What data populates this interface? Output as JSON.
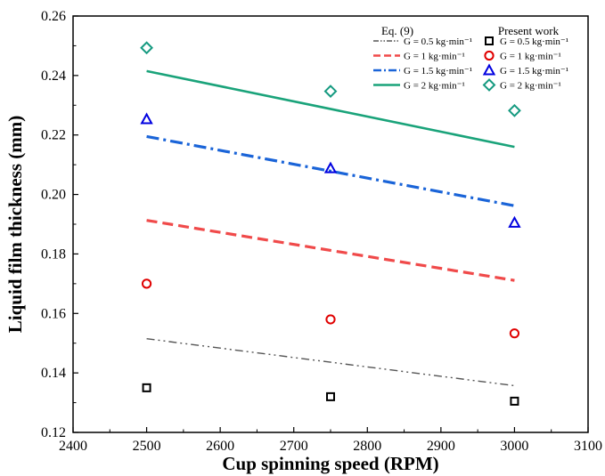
{
  "chart_data": {
    "type": "line",
    "xlabel": "Cup spinning speed (RPM)",
    "ylabel": "Liquid film thickness (mm)",
    "xlim": [
      2400,
      3100
    ],
    "ylim": [
      0.12,
      0.26
    ],
    "xticks": [
      2400,
      2500,
      2600,
      2700,
      2800,
      2900,
      3000,
      3100
    ],
    "yticks": [
      0.12,
      0.14,
      0.16,
      0.18,
      0.2,
      0.22,
      0.24,
      0.26
    ],
    "grid": false,
    "legend_position": "top-right",
    "legend_groups": {
      "lines_header": "Eq. (9)",
      "points_header": "Present work"
    },
    "series": [
      {
        "name": "G = 0.5 kg·min⁻¹",
        "kind": "line",
        "style": "dash-dot-dot",
        "color": "#555555",
        "x": [
          2500,
          3000
        ],
        "y": [
          0.1515,
          0.1357
        ]
      },
      {
        "name": "G = 1 kg·min⁻¹",
        "kind": "line",
        "style": "dash",
        "color": "#f04a4a",
        "x": [
          2500,
          3000
        ],
        "y": [
          0.1913,
          0.1711
        ]
      },
      {
        "name": "G = 1.5 kg·min⁻¹",
        "kind": "line",
        "style": "dash-dot",
        "color": "#1a64d8",
        "x": [
          2500,
          3000
        ],
        "y": [
          0.2195,
          0.1962
        ]
      },
      {
        "name": "G = 2 kg·min⁻¹",
        "kind": "line",
        "style": "solid",
        "color": "#1aa37a",
        "x": [
          2500,
          3000
        ],
        "y": [
          0.2415,
          0.216
        ]
      },
      {
        "name": "G = 0.5 kg·min⁻¹",
        "kind": "points",
        "marker": "square",
        "color": "#000000",
        "x": [
          2500,
          2750,
          3000
        ],
        "y": [
          0.135,
          0.132,
          0.1305
        ]
      },
      {
        "name": "G = 1 kg·min⁻¹",
        "kind": "points",
        "marker": "circle",
        "color": "#e00000",
        "x": [
          2500,
          2750,
          3000
        ],
        "y": [
          0.17,
          0.158,
          0.1533
        ]
      },
      {
        "name": "G = 1.5 kg·min⁻¹",
        "kind": "points",
        "marker": "triangle",
        "color": "#0000e0",
        "x": [
          2500,
          2750,
          3000
        ],
        "y": [
          0.2253,
          0.2088,
          0.1905
        ]
      },
      {
        "name": "G = 2 kg·min⁻¹",
        "kind": "points",
        "marker": "diamond",
        "color": "#159a80",
        "x": [
          2500,
          2750,
          3000
        ],
        "y": [
          0.2493,
          0.2347,
          0.2282
        ]
      }
    ]
  }
}
